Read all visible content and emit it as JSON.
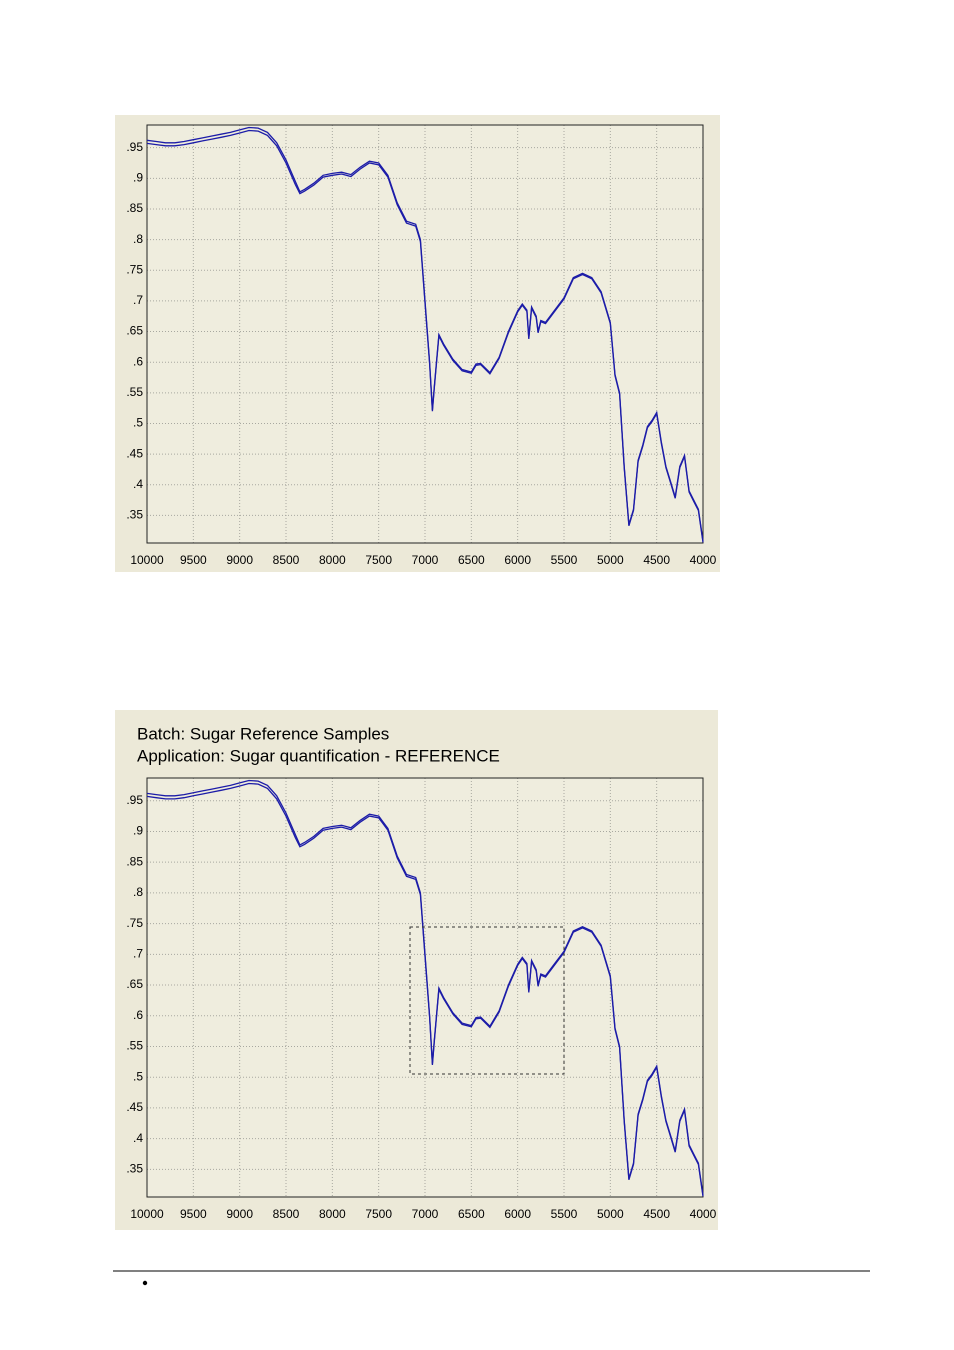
{
  "chart_data": [
    {
      "type": "line",
      "x": [
        10000,
        9900,
        9800,
        9700,
        9600,
        9500,
        9400,
        9300,
        9200,
        9100,
        9000,
        8900,
        8800,
        8700,
        8600,
        8500,
        8400,
        8350,
        8300,
        8200,
        8100,
        8000,
        7900,
        7800,
        7700,
        7600,
        7500,
        7400,
        7300,
        7200,
        7100,
        7050,
        7000,
        6950,
        6920,
        6900,
        6850,
        6800,
        6700,
        6600,
        6500,
        6450,
        6400,
        6300,
        6200,
        6100,
        6000,
        5950,
        5900,
        5880,
        5850,
        5800,
        5780,
        5750,
        5700,
        5600,
        5500,
        5400,
        5300,
        5200,
        5100,
        5000,
        4950,
        4900,
        4850,
        4800,
        4750,
        4700,
        4650,
        4600,
        4550,
        4500,
        4450,
        4400,
        4350,
        4300,
        4250,
        4200,
        4150,
        4100,
        4050,
        4000
      ],
      "series": [
        {
          "color": "#1c1ca8",
          "values": [
            0.962,
            0.96,
            0.958,
            0.958,
            0.96,
            0.963,
            0.966,
            0.969,
            0.972,
            0.975,
            0.979,
            0.983,
            0.982,
            0.975,
            0.958,
            0.93,
            0.895,
            0.878,
            0.882,
            0.892,
            0.905,
            0.908,
            0.91,
            0.906,
            0.918,
            0.928,
            0.925,
            0.905,
            0.86,
            0.83,
            0.825,
            0.8,
            0.7,
            0.6,
            0.522,
            0.56,
            0.645,
            0.63,
            0.605,
            0.588,
            0.584,
            0.597,
            0.598,
            0.583,
            0.608,
            0.65,
            0.684,
            0.695,
            0.685,
            0.64,
            0.69,
            0.675,
            0.65,
            0.668,
            0.665,
            0.685,
            0.705,
            0.738,
            0.745,
            0.738,
            0.715,
            0.665,
            0.58,
            0.55,
            0.43,
            0.335,
            0.36,
            0.44,
            0.465,
            0.495,
            0.505,
            0.518,
            0.47,
            0.43,
            0.405,
            0.38,
            0.43,
            0.448,
            0.39,
            0.375,
            0.36,
            0.308
          ]
        },
        {
          "color": "#1c1ca8",
          "values": [
            0.957,
            0.955,
            0.953,
            0.953,
            0.955,
            0.958,
            0.961,
            0.964,
            0.967,
            0.97,
            0.974,
            0.978,
            0.977,
            0.97,
            0.953,
            0.925,
            0.89,
            0.875,
            0.879,
            0.889,
            0.902,
            0.905,
            0.907,
            0.903,
            0.915,
            0.925,
            0.922,
            0.902,
            0.857,
            0.827,
            0.822,
            0.797,
            0.697,
            0.598,
            0.52,
            0.558,
            0.643,
            0.628,
            0.603,
            0.586,
            0.582,
            0.595,
            0.596,
            0.581,
            0.606,
            0.648,
            0.682,
            0.693,
            0.683,
            0.638,
            0.688,
            0.673,
            0.648,
            0.666,
            0.663,
            0.683,
            0.703,
            0.736,
            0.743,
            0.736,
            0.713,
            0.663,
            0.578,
            0.548,
            0.428,
            0.333,
            0.358,
            0.438,
            0.463,
            0.493,
            0.503,
            0.516,
            0.468,
            0.428,
            0.403,
            0.378,
            0.428,
            0.446,
            0.388,
            0.373,
            0.358,
            0.306
          ]
        }
      ],
      "xlim": [
        10000,
        4000
      ],
      "xticks": [
        10000,
        9500,
        9000,
        8500,
        8000,
        7500,
        7000,
        6500,
        6000,
        5500,
        5000,
        4500,
        4000
      ],
      "ylim": [
        0.305,
        0.987
      ],
      "yticks": [
        {
          "value": 0.35,
          "label": ".35"
        },
        {
          "value": 0.4,
          "label": ".4"
        },
        {
          "value": 0.45,
          "label": ".45"
        },
        {
          "value": 0.5,
          "label": ".5"
        },
        {
          "value": 0.55,
          "label": ".55"
        },
        {
          "value": 0.6,
          "label": ".6"
        },
        {
          "value": 0.65,
          "label": ".65"
        },
        {
          "value": 0.7,
          "label": ".7"
        },
        {
          "value": 0.75,
          "label": ".75"
        },
        {
          "value": 0.8,
          "label": ".8"
        },
        {
          "value": 0.85,
          "label": ".85"
        },
        {
          "value": 0.9,
          "label": ".9"
        },
        {
          "value": 0.95,
          "label": ".95"
        }
      ],
      "grid": true
    },
    {
      "type": "line",
      "title": "Batch: Sugar Reference Samples",
      "subtitle": "Application: Sugar quantification - REFERENCE",
      "x": [
        10000,
        9900,
        9800,
        9700,
        9600,
        9500,
        9400,
        9300,
        9200,
        9100,
        9000,
        8900,
        8800,
        8700,
        8600,
        8500,
        8400,
        8350,
        8300,
        8200,
        8100,
        8000,
        7900,
        7800,
        7700,
        7600,
        7500,
        7400,
        7300,
        7200,
        7100,
        7050,
        7000,
        6950,
        6920,
        6900,
        6850,
        6800,
        6700,
        6600,
        6500,
        6450,
        6400,
        6300,
        6200,
        6100,
        6000,
        5950,
        5900,
        5880,
        5850,
        5800,
        5780,
        5750,
        5700,
        5600,
        5500,
        5400,
        5300,
        5200,
        5100,
        5000,
        4950,
        4900,
        4850,
        4800,
        4750,
        4700,
        4650,
        4600,
        4550,
        4500,
        4450,
        4400,
        4350,
        4300,
        4250,
        4200,
        4150,
        4100,
        4050,
        4000
      ],
      "series": [
        {
          "color": "#1c1ca8",
          "values": [
            0.962,
            0.96,
            0.958,
            0.958,
            0.96,
            0.963,
            0.966,
            0.969,
            0.972,
            0.975,
            0.979,
            0.983,
            0.982,
            0.975,
            0.958,
            0.93,
            0.895,
            0.878,
            0.882,
            0.892,
            0.905,
            0.908,
            0.91,
            0.906,
            0.918,
            0.928,
            0.925,
            0.905,
            0.86,
            0.83,
            0.825,
            0.8,
            0.7,
            0.6,
            0.522,
            0.56,
            0.645,
            0.63,
            0.605,
            0.588,
            0.584,
            0.597,
            0.598,
            0.583,
            0.608,
            0.65,
            0.684,
            0.695,
            0.685,
            0.64,
            0.69,
            0.675,
            0.65,
            0.668,
            0.665,
            0.685,
            0.705,
            0.738,
            0.745,
            0.738,
            0.715,
            0.665,
            0.58,
            0.55,
            0.43,
            0.335,
            0.36,
            0.44,
            0.465,
            0.495,
            0.505,
            0.518,
            0.47,
            0.43,
            0.405,
            0.38,
            0.43,
            0.448,
            0.39,
            0.375,
            0.36,
            0.308
          ]
        },
        {
          "color": "#1c1ca8",
          "values": [
            0.957,
            0.955,
            0.953,
            0.953,
            0.955,
            0.958,
            0.961,
            0.964,
            0.967,
            0.97,
            0.974,
            0.978,
            0.977,
            0.97,
            0.953,
            0.925,
            0.89,
            0.875,
            0.879,
            0.889,
            0.902,
            0.905,
            0.907,
            0.903,
            0.915,
            0.925,
            0.922,
            0.902,
            0.857,
            0.827,
            0.822,
            0.797,
            0.697,
            0.598,
            0.52,
            0.558,
            0.643,
            0.628,
            0.603,
            0.586,
            0.582,
            0.595,
            0.596,
            0.581,
            0.606,
            0.648,
            0.682,
            0.693,
            0.683,
            0.638,
            0.688,
            0.673,
            0.648,
            0.666,
            0.663,
            0.683,
            0.703,
            0.736,
            0.743,
            0.736,
            0.713,
            0.663,
            0.578,
            0.548,
            0.428,
            0.333,
            0.358,
            0.438,
            0.463,
            0.493,
            0.503,
            0.516,
            0.468,
            0.428,
            0.403,
            0.378,
            0.428,
            0.446,
            0.388,
            0.373,
            0.358,
            0.306
          ]
        }
      ],
      "xlim": [
        10000,
        4000
      ],
      "xticks": [
        10000,
        9500,
        9000,
        8500,
        8000,
        7500,
        7000,
        6500,
        6000,
        5500,
        5000,
        4500,
        4000
      ],
      "ylim": [
        0.305,
        0.987
      ],
      "yticks": [
        {
          "value": 0.35,
          "label": ".35"
        },
        {
          "value": 0.4,
          "label": ".4"
        },
        {
          "value": 0.45,
          "label": ".45"
        },
        {
          "value": 0.5,
          "label": ".5"
        },
        {
          "value": 0.55,
          "label": ".55"
        },
        {
          "value": 0.6,
          "label": ".6"
        },
        {
          "value": 0.65,
          "label": ".65"
        },
        {
          "value": 0.7,
          "label": ".7"
        },
        {
          "value": 0.75,
          "label": ".75"
        },
        {
          "value": 0.8,
          "label": ".8"
        },
        {
          "value": 0.85,
          "label": ".85"
        },
        {
          "value": 0.9,
          "label": ".9"
        },
        {
          "value": 0.95,
          "label": ".95"
        }
      ],
      "grid": true
    }
  ]
}
